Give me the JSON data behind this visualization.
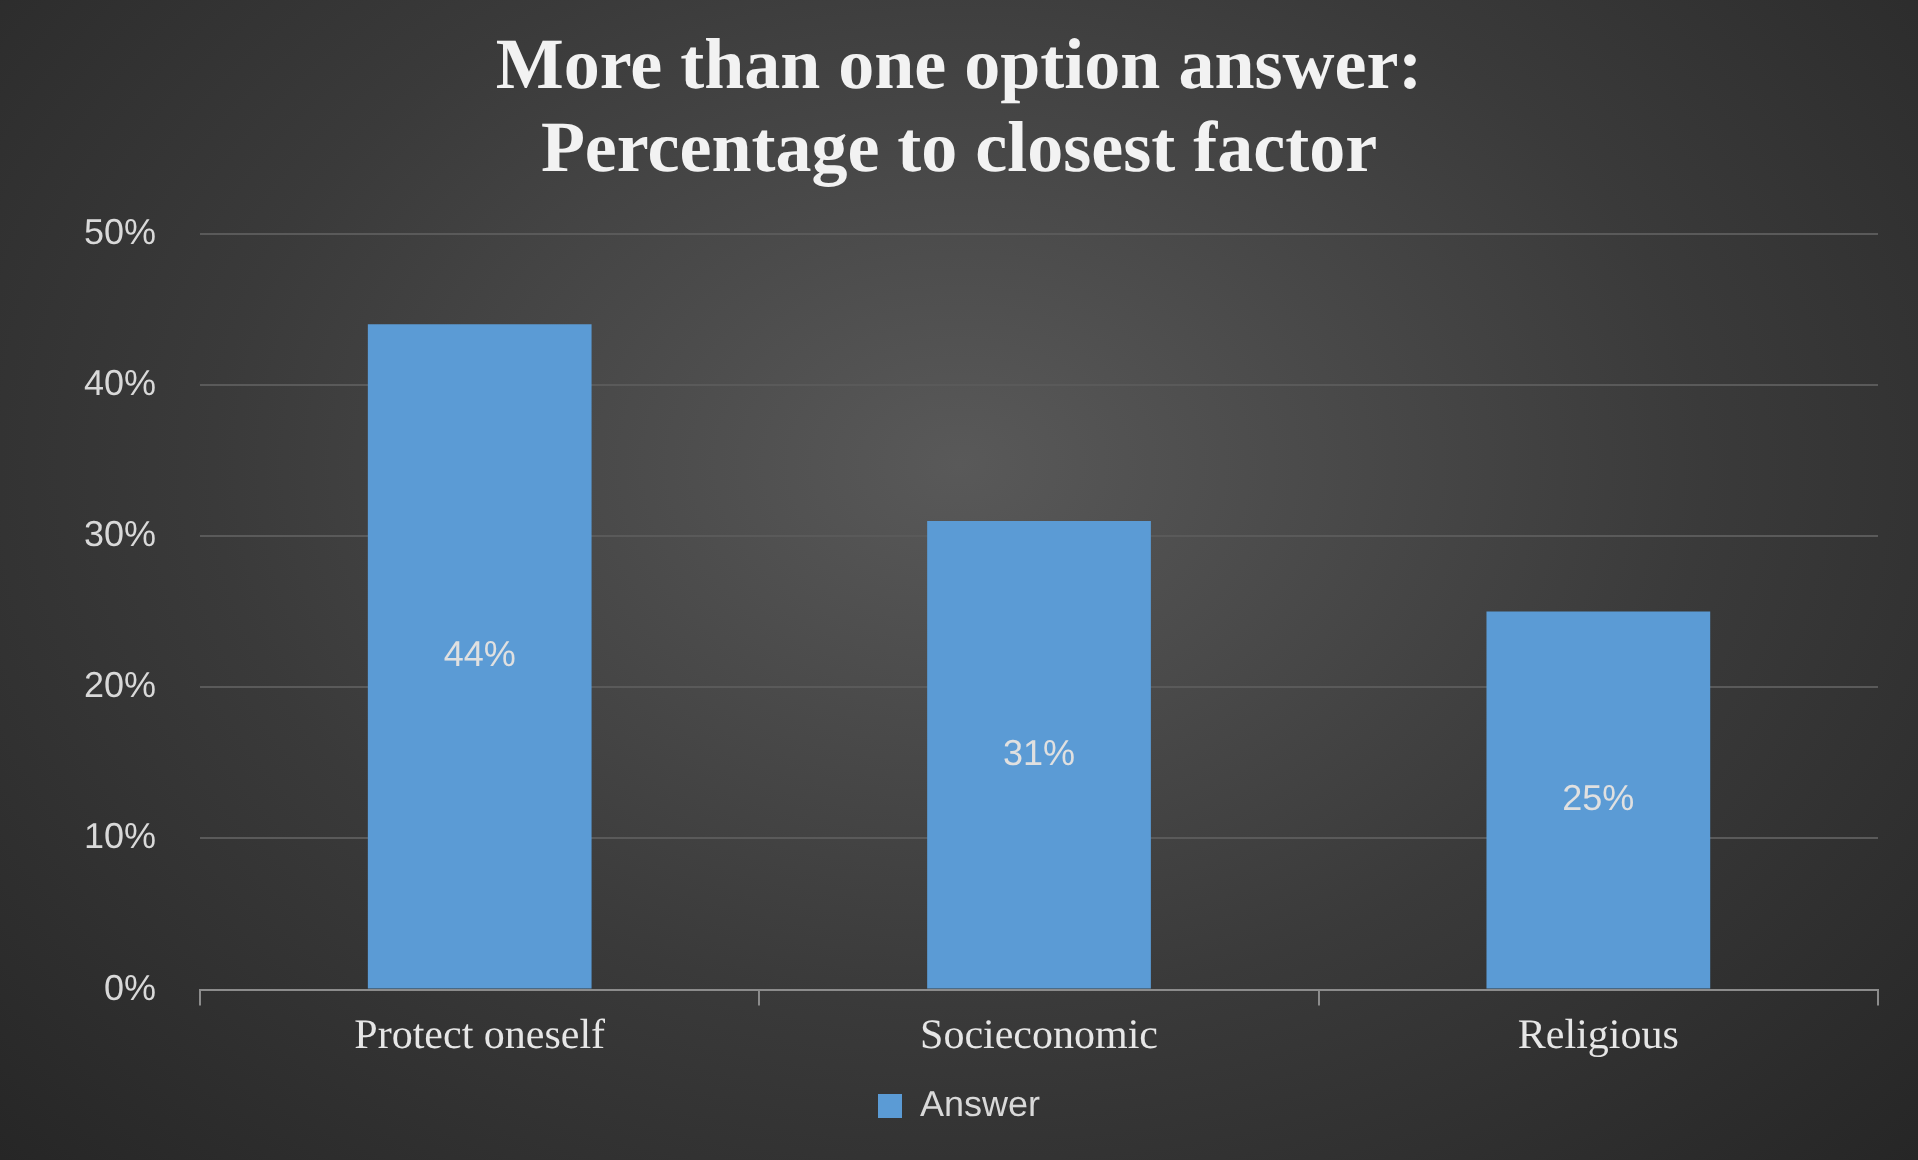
{
  "chart_data": {
    "type": "bar",
    "title": [
      "More than one option answer:",
      "Percentage to closest factor"
    ],
    "categories": [
      "Protect oneself",
      "Socieconomic",
      "Religious"
    ],
    "series": [
      {
        "name": "Answer",
        "color": "#5b9bd5",
        "values": [
          44,
          31,
          25
        ],
        "value_labels": [
          "44%",
          "31%",
          "25%"
        ]
      }
    ],
    "ylim": [
      0,
      50
    ],
    "yticks": [
      {
        "value": 0,
        "label": "0%"
      },
      {
        "value": 10,
        "label": "10%"
      },
      {
        "value": 20,
        "label": "20%"
      },
      {
        "value": 30,
        "label": "30%"
      },
      {
        "value": 40,
        "label": "40%"
      },
      {
        "value": 50,
        "label": "50%"
      }
    ],
    "grid": "y",
    "legend": "bottom"
  }
}
